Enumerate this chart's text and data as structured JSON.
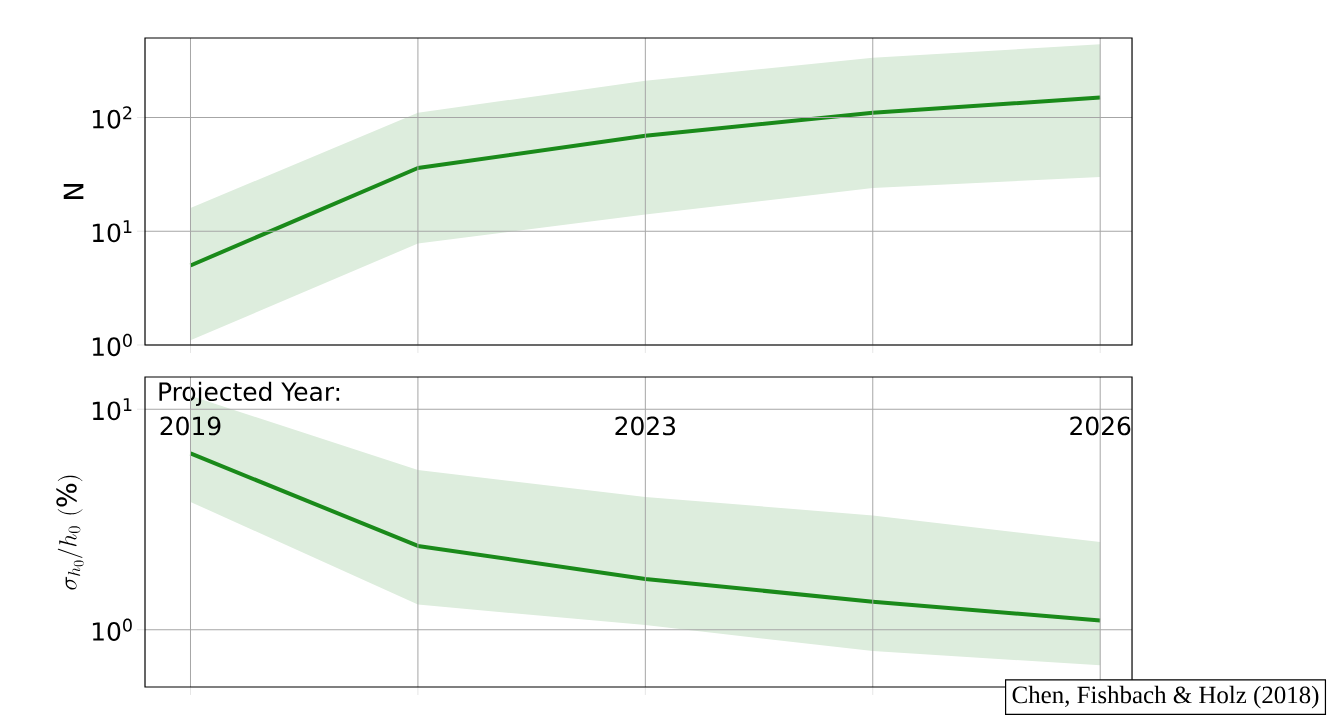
{
  "chart_data": [
    {
      "type": "line",
      "categories": [
        "2019",
        null,
        "2023",
        null,
        "2026"
      ],
      "ylabel": "N",
      "log": "y",
      "ylim": [
        1,
        500
      ],
      "yticks": [
        {
          "value": 1,
          "label": "10$^{0}$"
        },
        {
          "value": 10,
          "label": "10$^{1}$"
        },
        {
          "value": 100,
          "label": "10$^{2}$"
        }
      ],
      "grid": true,
      "tick_labels": "y",
      "series": [
        {
          "color": "#1a8a1a",
          "values": [
            5.0,
            36,
            69,
            110,
            150
          ],
          "lower": [
            1.1,
            7.8,
            14,
            24,
            30
          ],
          "upper": [
            16,
            110,
            210,
            335,
            440
          ]
        }
      ]
    },
    {
      "type": "line",
      "categories": [
        "2019",
        null,
        "2023",
        null,
        "2026"
      ],
      "ylabel": "\\sigma_{h_0}/h_0\\ (\\%)",
      "log": "y",
      "ylim": [
        0.55,
        14
      ],
      "yticks": [
        {
          "value": 1,
          "label": "10$^{0}$"
        },
        {
          "value": 10,
          "label": "10$^{1}$"
        }
      ],
      "grid": true,
      "annotations": [
        "Projected Year:",
        "Chen, Fishbach & Holz (2018)"
      ],
      "series": [
        {
          "color": "#1a8a1a",
          "values": [
            6.3,
            2.4,
            1.7,
            1.34,
            1.1
          ],
          "lower": [
            3.8,
            1.3,
            1.05,
            0.8,
            0.69
          ],
          "upper": [
            11.5,
            5.3,
            4.0,
            3.3,
            2.5
          ]
        }
      ]
    }
  ]
}
